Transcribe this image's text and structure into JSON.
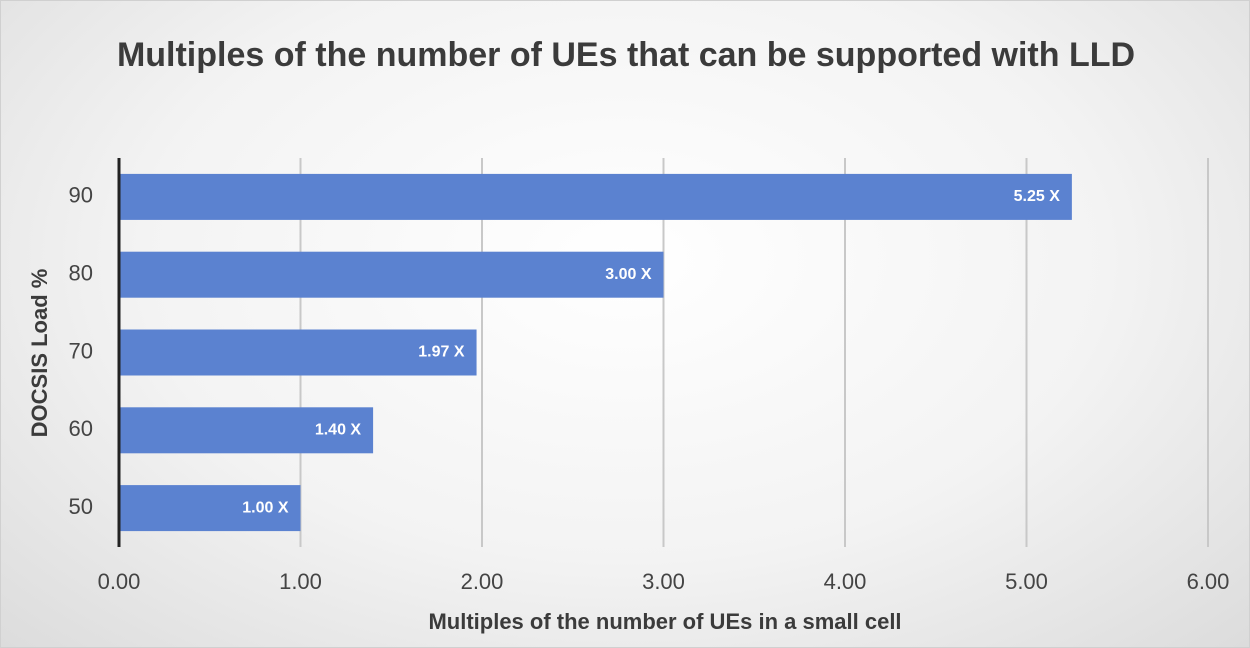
{
  "chart_data": {
    "type": "barh",
    "title": "Multiples of the number of UEs that can be supported with LLD",
    "x_label": "Multiples of the number of UEs in a small cell",
    "y_label": "DOCSIS Load %",
    "categories": [
      "90",
      "80",
      "70",
      "60",
      "50"
    ],
    "values": [
      5.25,
      3.0,
      1.97,
      1.4,
      1.0
    ],
    "value_labels": [
      "5.25 X",
      "3.00 X",
      "1.97 X",
      "1.40 X",
      "1.00 X"
    ],
    "color": "#5b82d0",
    "xlim": [
      0,
      6
    ],
    "xticks": [
      {
        "value": 0,
        "label": "0.00"
      },
      {
        "value": 1,
        "label": "1.00"
      },
      {
        "value": 2,
        "label": "2.00"
      },
      {
        "value": 3,
        "label": "3.00"
      },
      {
        "value": 4,
        "label": "4.00"
      },
      {
        "value": 5,
        "label": "5.00"
      },
      {
        "value": 6,
        "label": "6.00"
      }
    ],
    "grid": true
  }
}
